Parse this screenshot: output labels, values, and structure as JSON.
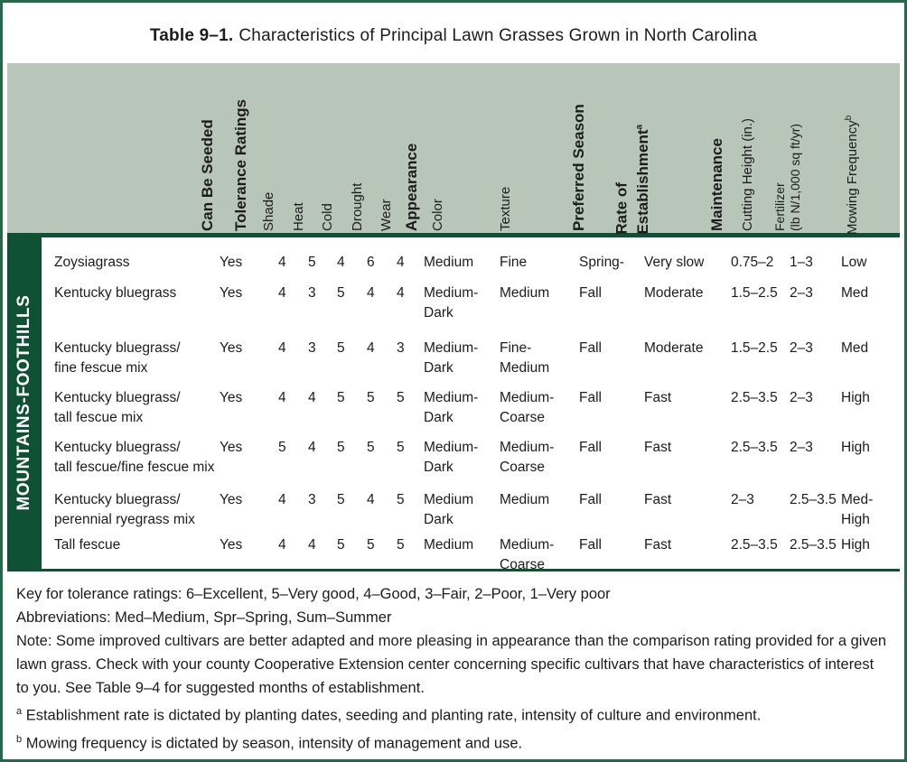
{
  "title": {
    "label": "Table 9–1.",
    "rest": "Characteristics of Principal Lawn Grasses Grown in North Carolina"
  },
  "region_label": "MOUNTAINS-FOOTHILLS",
  "header": {
    "can_be_seeded": "Can Be Seeded",
    "tolerance_ratings": "Tolerance Ratings",
    "shade": "Shade",
    "heat": "Heat",
    "cold": "Cold",
    "drought": "Drought",
    "wear": "Wear",
    "appearance": "Appearance",
    "color": "Color",
    "texture": "Texture",
    "preferred_season": "Preferred Season",
    "rate_line1": "Rate of",
    "rate_line2": "Establishment",
    "rate_sup": "a",
    "maintenance": "Maintenance",
    "cutting_height": "Cutting Height (in.)",
    "fertilizer_line1": "Fertilizer",
    "fertilizer_line2": "(lb N/1,000 sq ft/yr)",
    "mowing": "Mowing Frequency",
    "mowing_sup": "b"
  },
  "rows": [
    {
      "name": "Zoysiagrass",
      "seeded": "Yes",
      "shade": "4",
      "heat": "5",
      "cold": "4",
      "drought": "6",
      "wear": "4",
      "color": "Medium",
      "texture": "Fine",
      "season": "Spring-",
      "rate": "Very slow",
      "cutting": "0.75–2",
      "fertilizer": "1–3",
      "mowing": "Low"
    },
    {
      "name": "Kentucky bluegrass",
      "seeded": "Yes",
      "shade": "4",
      "heat": "3",
      "cold": "5",
      "drought": "4",
      "wear": "4",
      "color": "Medium-\nDark",
      "texture": "Medium",
      "season": "Fall",
      "rate": "Moderate",
      "cutting": "1.5–2.5",
      "fertilizer": "2–3",
      "mowing": "Med"
    },
    {
      "name": "Kentucky bluegrass/\nfine fescue mix",
      "seeded": "Yes",
      "shade": "4",
      "heat": "3",
      "cold": "5",
      "drought": "4",
      "wear": "3",
      "color": "Medium-\nDark",
      "texture": "Fine-\nMedium",
      "season": "Fall",
      "rate": "Moderate",
      "cutting": "1.5–2.5",
      "fertilizer": "2–3",
      "mowing": "Med"
    },
    {
      "name": "Kentucky bluegrass/\ntall fescue mix",
      "seeded": "Yes",
      "shade": "4",
      "heat": "4",
      "cold": "5",
      "drought": "5",
      "wear": "5",
      "color": "Medium-\nDark",
      "texture": "Medium-\nCoarse",
      "season": "Fall",
      "rate": "Fast",
      "cutting": "2.5–3.5",
      "fertilizer": "2–3",
      "mowing": "High"
    },
    {
      "name": "Kentucky bluegrass/\ntall fescue/fine fescue mix",
      "seeded": "Yes",
      "shade": "5",
      "heat": "4",
      "cold": "5",
      "drought": "5",
      "wear": "5",
      "color": "Medium-\nDark",
      "texture": "Medium-\nCoarse",
      "season": "Fall",
      "rate": "Fast",
      "cutting": "2.5–3.5",
      "fertilizer": "2–3",
      "mowing": "High"
    },
    {
      "name": "Kentucky bluegrass/\nperennial ryegrass mix",
      "seeded": "Yes",
      "shade": "4",
      "heat": "3",
      "cold": "5",
      "drought": "4",
      "wear": "5",
      "color": "Medium\nDark",
      "texture": "Medium",
      "season": "Fall",
      "rate": "Fast",
      "cutting": "2–3",
      "fertilizer": "2.5–3.5",
      "mowing": "Med-\nHigh"
    },
    {
      "name": "Tall fescue",
      "seeded": "Yes",
      "shade": "4",
      "heat": "4",
      "cold": "5",
      "drought": "5",
      "wear": "5",
      "color": "Medium",
      "texture": "Medium-\nCoarse",
      "season": "Fall",
      "rate": "Fast",
      "cutting": "2.5–3.5",
      "fertilizer": "2.5–3.5",
      "mowing": "High"
    }
  ],
  "notes": [
    {
      "sup": "",
      "text": "Key for tolerance ratings: 6–Excellent, 5–Very good, 4–Good, 3–Fair, 2–Poor, 1–Very poor"
    },
    {
      "sup": "",
      "text": "Abbreviations: Med–Medium, Spr–Spring, Sum–Summer"
    },
    {
      "sup": "",
      "text": "Note: Some improved cultivars are better adapted and more pleasing in appearance than the comparison rating provided for a given lawn grass. Check with your county Cooperative Extension center concerning specific cultivars that have characteristics of interest to you. See Table 9–4 for suggested months of establishment."
    },
    {
      "sup": "a",
      "text": "Establishment rate is dictated by planting dates, seeding and planting rate, intensity of culture and environment."
    },
    {
      "sup": "b",
      "text": "Mowing frequency is dictated by season, intensity of management and use."
    }
  ],
  "colors": {
    "dark_green": "#0e5134",
    "sage": "#b8c6ba",
    "border_green": "#26684a",
    "text": "#1c1c1c"
  }
}
